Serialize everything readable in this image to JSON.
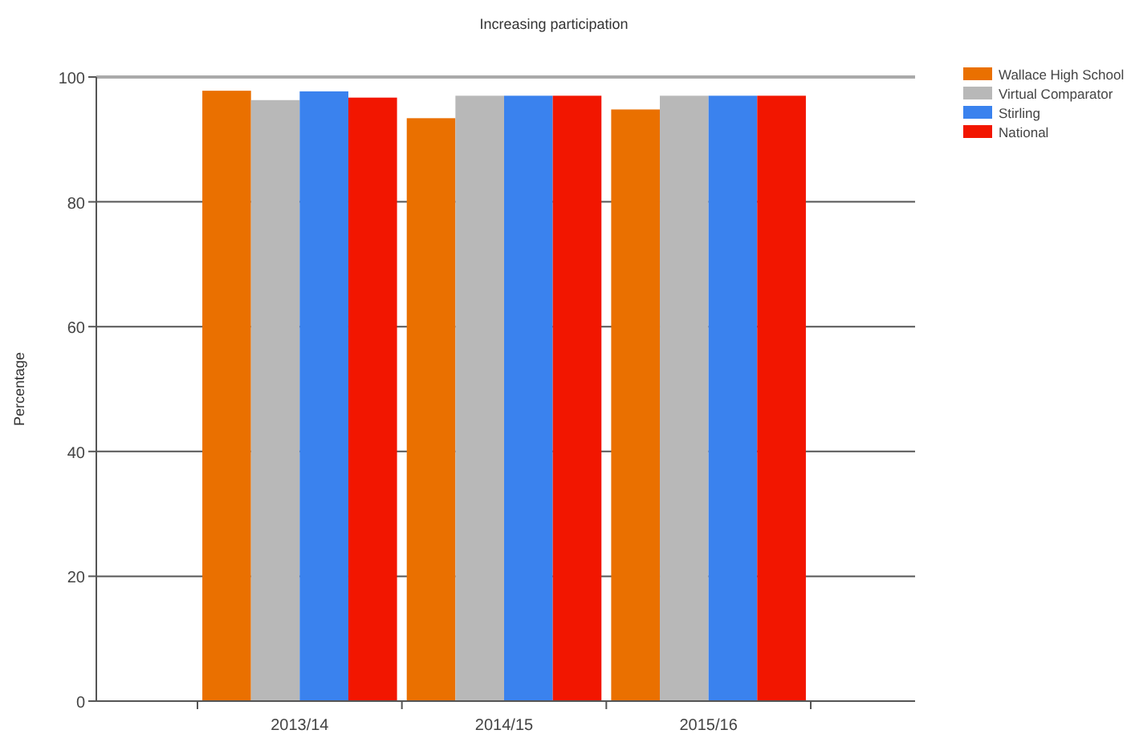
{
  "chart_data": {
    "type": "bar",
    "title": "Increasing participation",
    "ylabel": "Percentage",
    "categories": [
      "2013/14",
      "2014/15",
      "2015/16"
    ],
    "series": [
      {
        "name": "Wallace High School",
        "color": "#ea7000",
        "values": [
          97.8,
          93.4,
          94.8
        ]
      },
      {
        "name": "Virtual Comparator",
        "color": "#b8b8b8",
        "values": [
          96.3,
          97.0,
          97.0
        ]
      },
      {
        "name": "Stirling",
        "color": "#3a82ee",
        "values": [
          97.7,
          97.0,
          97.0
        ]
      },
      {
        "name": "National",
        "color": "#f21600",
        "values": [
          96.7,
          97.0,
          97.0
        ]
      }
    ],
    "ylim": [
      0,
      100
    ],
    "yticks": [
      0,
      20,
      40,
      60,
      80,
      100
    ],
    "grid": "y",
    "legend": "top right"
  }
}
